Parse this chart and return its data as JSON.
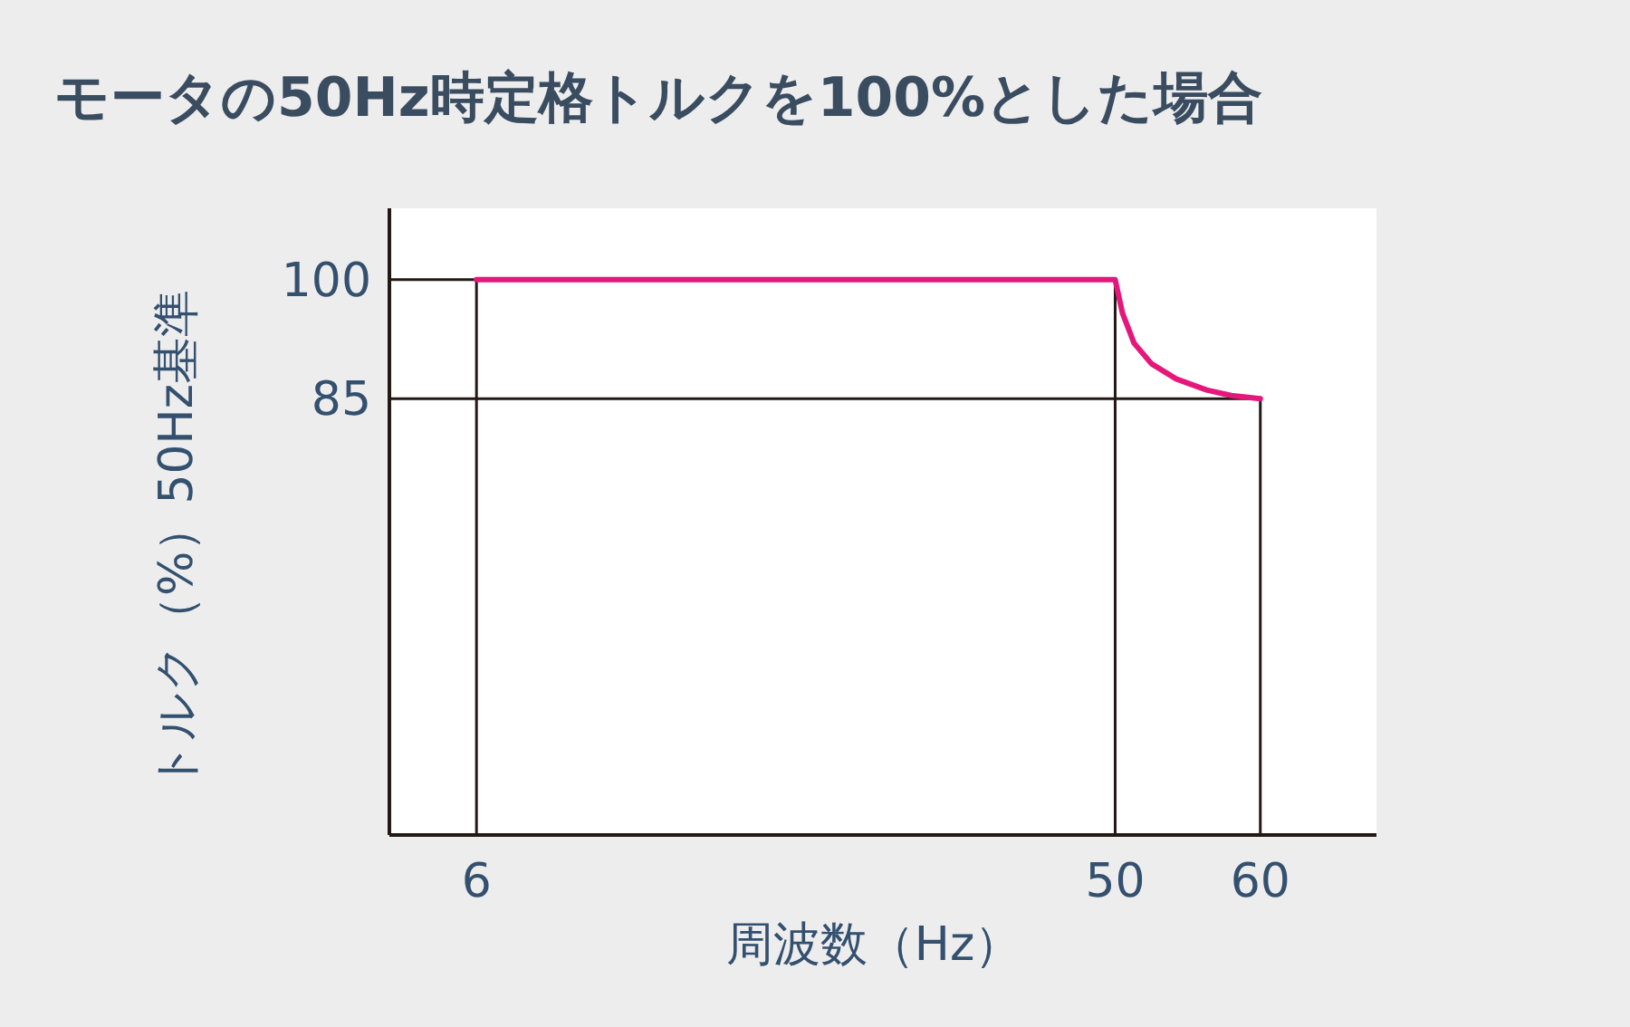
{
  "chart_data": {
    "type": "line",
    "title": "モータの50Hz時定格トルクを100%とした場合",
    "xlabel": "周波数（Hz）",
    "ylabel": "トルク（%）50Hz基準",
    "x": [
      6,
      50,
      50.5,
      51.3,
      52.5,
      54.2,
      56.3,
      58,
      60
    ],
    "values": [
      100,
      100,
      95.8,
      92,
      89.4,
      87.5,
      86.1,
      85.4,
      85
    ],
    "color": "#e5177b",
    "line_style": "solid",
    "xlim": [
      0,
      68
    ],
    "ylim": [
      30,
      109
    ],
    "xticks": [
      6,
      50,
      60
    ],
    "yticks": [
      100,
      85
    ],
    "ref_lines": [
      {
        "axis": "x",
        "value": 6,
        "color": "#231815"
      },
      {
        "axis": "x",
        "value": 50,
        "color": "#231815"
      },
      {
        "axis": "x",
        "value": 60,
        "color": "#231815"
      },
      {
        "axis": "y",
        "value": 100,
        "color": "#231815"
      },
      {
        "axis": "y",
        "value": 85,
        "color": "#231815"
      }
    ]
  }
}
